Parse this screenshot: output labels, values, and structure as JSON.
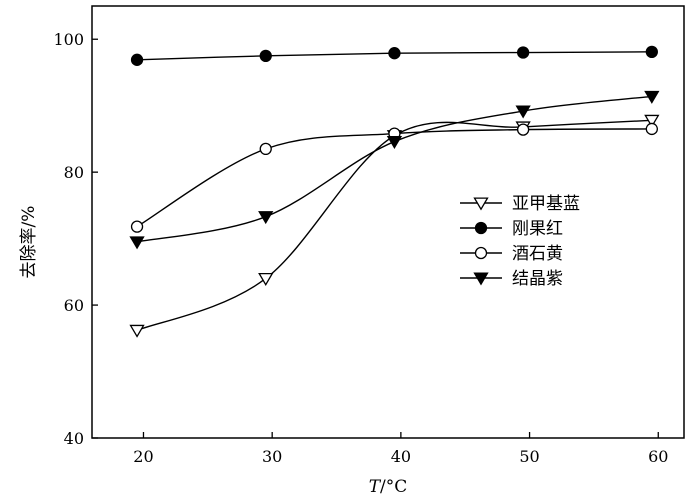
{
  "chart_data": {
    "type": "line",
    "xlabel": {
      "var": "T",
      "unit": "/°C"
    },
    "ylabel": "去除率/%",
    "xlim": [
      16,
      62
    ],
    "ylim": [
      40,
      105
    ],
    "x_ticks": [
      20,
      30,
      40,
      50,
      60
    ],
    "y_ticks": [
      40,
      60,
      80,
      100
    ],
    "x_tick_labels": [
      "20",
      "30",
      "40",
      "50",
      "60"
    ],
    "y_tick_labels": [
      "40",
      "60",
      "80",
      "100"
    ],
    "grid": false,
    "legend_position": "center-right",
    "series": [
      {
        "name": "亚甲基蓝",
        "marker": "triangle-down-open",
        "x": [
          19.5,
          29.5,
          39.5,
          49.5,
          59.5
        ],
        "y": [
          56.2,
          64.0,
          85.5,
          86.8,
          87.8
        ]
      },
      {
        "name": "刚果红",
        "marker": "circle-filled",
        "x": [
          19.5,
          29.5,
          39.5,
          49.5,
          59.5
        ],
        "y": [
          96.9,
          97.5,
          97.9,
          98.0,
          98.1
        ]
      },
      {
        "name": "酒石黄",
        "marker": "circle-open",
        "x": [
          19.5,
          29.5,
          39.5,
          49.5,
          59.5
        ],
        "y": [
          71.8,
          83.5,
          85.8,
          86.4,
          86.5
        ]
      },
      {
        "name": "结晶紫",
        "marker": "triangle-down-filled",
        "x": [
          19.5,
          29.5,
          39.5,
          49.5,
          59.5
        ],
        "y": [
          69.5,
          73.3,
          84.6,
          89.2,
          91.4
        ]
      }
    ]
  }
}
